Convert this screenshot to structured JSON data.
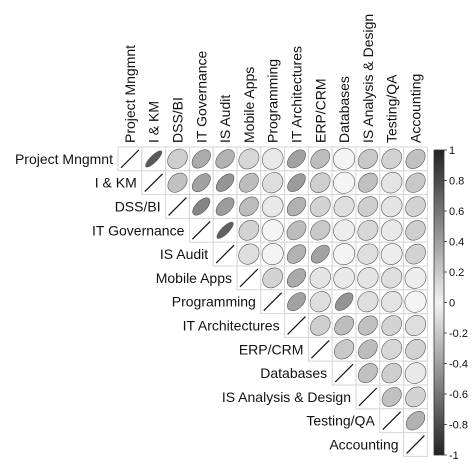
{
  "chart_data": {
    "type": "heatmap",
    "variant": "upper-triangle correlation ellipse matrix",
    "variables": [
      "Project Mngmnt",
      "I & KM",
      "DSS/BI",
      "IT Governance",
      "IS Audit",
      "Mobile Apps",
      "Programming",
      "IT Architectures",
      "ERP/CRM",
      "Databases",
      "IS Analysis & Design",
      "Testing/QA",
      "Accounting"
    ],
    "row_labels": [
      "Project Mngmnt",
      "I & KM",
      "DSS/BI",
      "IT Governance",
      "IS Audit",
      "Mobile Apps",
      "Programming",
      "IT Architectures",
      "ERP/CRM",
      "Databases",
      "IS Analysis & Design",
      "Testing/QA",
      "Accounting"
    ],
    "column_labels": [
      "Project Mngmnt",
      "I & KM",
      "DSS/BI",
      "IT Governance",
      "IS Audit",
      "Mobile Apps",
      "Programming",
      "IT Architectures",
      "ERP/CRM",
      "Databases",
      "IS Analysis & Design",
      "Testing/QA",
      "Accounting"
    ],
    "matrix": [
      [
        1,
        0.75,
        0.22,
        0.38,
        0.35,
        0.18,
        0.1,
        0.42,
        0.3,
        0.05,
        0.25,
        0.2,
        0.28
      ],
      [
        null,
        1,
        0.28,
        0.42,
        0.48,
        0.3,
        0.15,
        0.45,
        0.22,
        0.05,
        0.28,
        0.12,
        0.25
      ],
      [
        null,
        null,
        1,
        0.55,
        0.45,
        0.3,
        0.1,
        0.35,
        0.2,
        0.15,
        0.22,
        0.12,
        0.2
      ],
      [
        null,
        null,
        null,
        1,
        0.72,
        0.2,
        0.05,
        0.3,
        0.25,
        0.08,
        0.18,
        0.1,
        0.22
      ],
      [
        null,
        null,
        null,
        null,
        1,
        0.15,
        0.05,
        0.35,
        0.42,
        0.05,
        0.15,
        0.08,
        0.2
      ],
      [
        null,
        null,
        null,
        null,
        null,
        1,
        0.2,
        0.38,
        0.12,
        0.1,
        0.12,
        0.15,
        0.08
      ],
      [
        null,
        null,
        null,
        null,
        null,
        null,
        1,
        0.42,
        0.15,
        0.48,
        0.15,
        0.12,
        0.05
      ],
      [
        null,
        null,
        null,
        null,
        null,
        null,
        null,
        1,
        0.22,
        0.3,
        0.28,
        0.2,
        0.15
      ],
      [
        null,
        null,
        null,
        null,
        null,
        null,
        null,
        null,
        1,
        0.25,
        0.3,
        0.18,
        0.2
      ],
      [
        null,
        null,
        null,
        null,
        null,
        null,
        null,
        null,
        null,
        1,
        0.28,
        0.22,
        0.1
      ],
      [
        null,
        null,
        null,
        null,
        null,
        null,
        null,
        null,
        null,
        null,
        1,
        0.28,
        0.2
      ],
      [
        null,
        null,
        null,
        null,
        null,
        null,
        null,
        null,
        null,
        null,
        null,
        1,
        0.35
      ],
      [
        null,
        null,
        null,
        null,
        null,
        null,
        null,
        null,
        null,
        null,
        null,
        null,
        1
      ]
    ],
    "diagonal": "slash",
    "colorbar": {
      "range": [
        -1,
        1
      ],
      "ticks": [
        "1",
        "0.8",
        "0.6",
        "0.4",
        "0.2",
        "0",
        "-0.2",
        "-0.4",
        "-0.6",
        "-0.8",
        "-1"
      ],
      "tick_values": [
        1,
        0.8,
        0.6,
        0.4,
        0.2,
        0,
        -0.2,
        -0.4,
        -0.6,
        -0.8,
        -1
      ],
      "scale": "grayscale, darker = stronger positive correlation",
      "colors": {
        "low": "#ffffff",
        "high": "#222222"
      }
    },
    "grid": true,
    "legend_placement": "right",
    "colors": {
      "cell_border": "#d6d6d6",
      "ellipse_stroke": "#555555"
    }
  }
}
